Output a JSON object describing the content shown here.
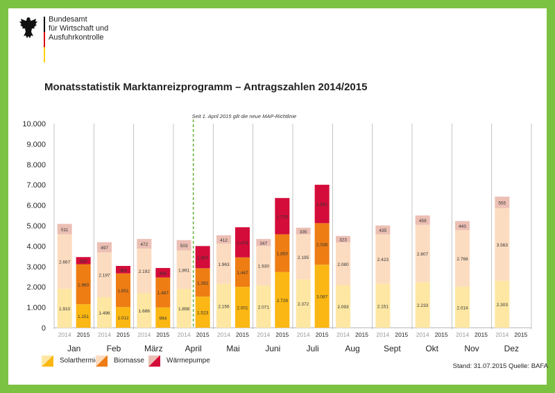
{
  "header": {
    "org_lines": [
      "Bundesamt",
      "für Wirtschaft und",
      "Ausfuhrkontrolle"
    ],
    "flag_colors": [
      "#000000",
      "#dd0000",
      "#ffce00"
    ]
  },
  "chart_data": {
    "type": "bar",
    "stacked": true,
    "title": "Monatsstatistik Marktanreizprogramm – Antragszahlen 2014/2015",
    "categories": [
      "Jan",
      "Feb",
      "März",
      "April",
      "Mai",
      "Juni",
      "Juli",
      "Aug",
      "Sept",
      "Okt",
      "Nov",
      "Dez"
    ],
    "years": [
      "2014",
      "2015"
    ],
    "ylim": [
      0,
      10000
    ],
    "yticks": [
      "0",
      "1.000",
      "2.000",
      "3.000",
      "4.000",
      "5.000",
      "6.000",
      "7.000",
      "8.000",
      "9.000",
      "10.000"
    ],
    "grid": "vertical separators",
    "legend_position": "bottom-left",
    "annotation": "Seit 1. April 2015 gilt die neue MAP-Richtlinie",
    "series": [
      {
        "name": "Solarthermie",
        "color_2014": "#fde7a3",
        "color_2015": "#fbb713",
        "values_2014": [
          1910,
          1496,
          1686,
          1898,
          2156,
          2071,
          2372,
          2093,
          2151,
          2233,
          2014,
          2303
        ],
        "values_2015": [
          1151,
          1012,
          994,
          1523,
          2001,
          2728,
          3087,
          null,
          null,
          null,
          null,
          null
        ],
        "labels_2014": [
          "1.910",
          "1.496",
          "1.686",
          "1.898",
          "2.156",
          "2.071",
          "2.372",
          "2.093",
          "2.151",
          "2.233",
          "2.014",
          "2.303"
        ],
        "labels_2015": [
          "1.151",
          "1.012",
          "994",
          "1.523",
          "2.001",
          "2.728",
          "3.087",
          "",
          "",
          "",
          "",
          ""
        ]
      },
      {
        "name": "Biomasse",
        "color_2014": "#fcdcc0",
        "color_2015": "#ee7d14",
        "values_2014": [
          2667,
          2197,
          2192,
          1891,
          1963,
          1930,
          2195,
          2080,
          2423,
          2807,
          2768,
          3563
        ],
        "values_2015": [
          1960,
          1651,
          1467,
          1392,
          1447,
          1850,
          2036,
          null,
          null,
          null,
          null,
          null
        ],
        "labels_2014": [
          "2.667",
          "2.197",
          "2.192",
          "1.891",
          "1.963",
          "1.930",
          "2.195",
          "2.080",
          "2.423",
          "2.807",
          "2.768",
          "3.563"
        ],
        "labels_2015": [
          "1.960",
          "1.651",
          "1.467",
          "1.392",
          "1.447",
          "1.850",
          "2.036",
          "",
          "",
          "",
          "",
          ""
        ]
      },
      {
        "name": "Wärmepumpe",
        "color_2014": "#ecbfb4",
        "color_2015": "#d40c3a",
        "values_2014": [
          511,
          497,
          472,
          503,
          412,
          347,
          335,
          323,
          435,
          459,
          443,
          555
        ],
        "values_2015": [
          350,
          364,
          466,
          1087,
          1474,
          1776,
          1881,
          null,
          null,
          null,
          null,
          null
        ],
        "labels_2014": [
          "511",
          "497",
          "472",
          "503",
          "412",
          "347",
          "335",
          "323",
          "435",
          "459",
          "443",
          "555"
        ],
        "labels_2015": [
          "350",
          "364",
          "466",
          "1.087",
          "1.474",
          "1.776",
          "1.881",
          "",
          "",
          "",
          "",
          ""
        ]
      }
    ]
  },
  "footer": {
    "text": "Stand: 31.07.2015  Quelle: BAFA"
  }
}
